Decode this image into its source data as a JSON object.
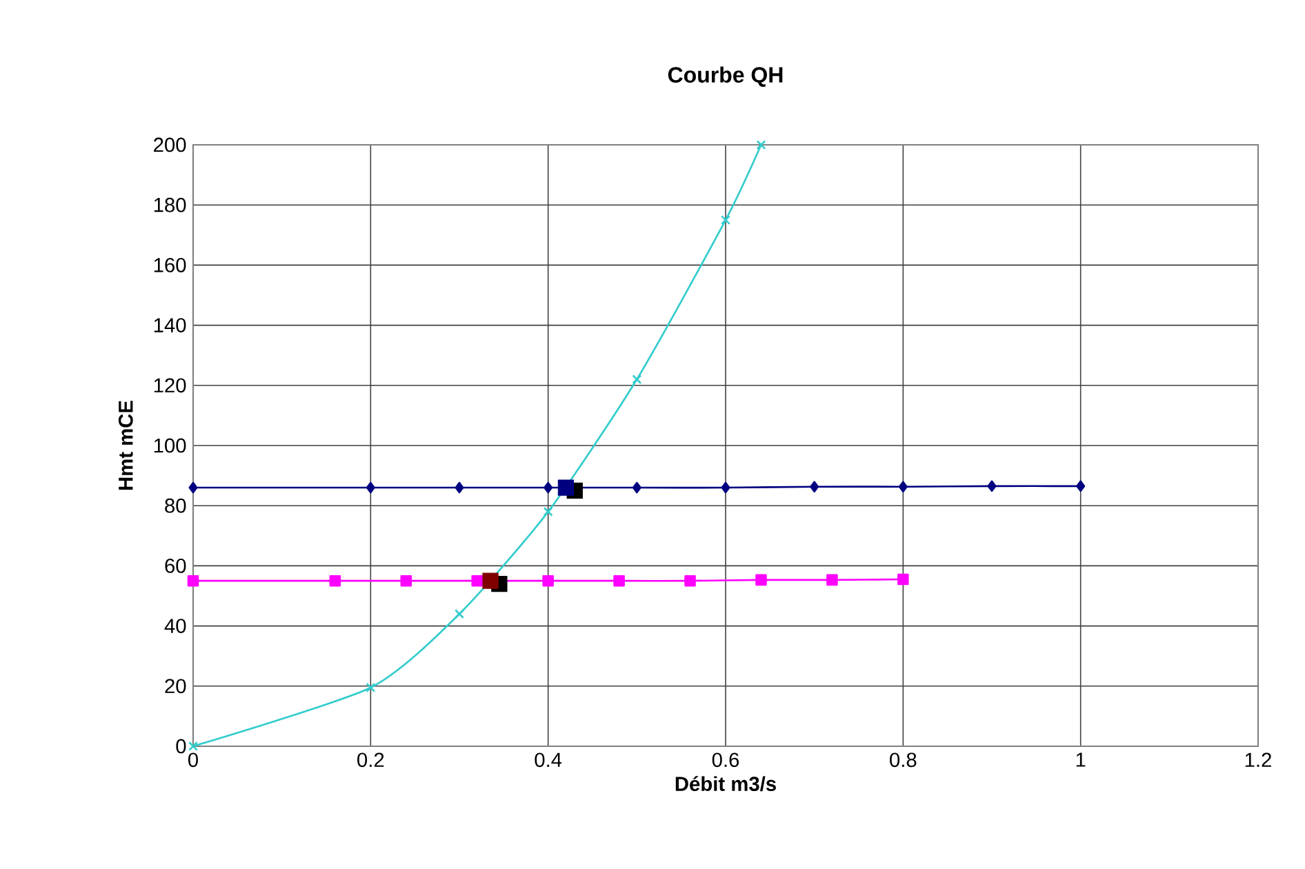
{
  "chart_data": {
    "type": "line",
    "title": "Courbe QH",
    "xlabel": "Débit m3/s",
    "ylabel": "Hmt mCE",
    "xlim": [
      0,
      1.2
    ],
    "xticks": [
      0,
      0.2,
      0.4,
      0.6,
      0.8,
      1,
      1.2
    ],
    "ylim": [
      0,
      200
    ],
    "yticks": [
      0,
      20,
      40,
      60,
      80,
      100,
      120,
      140,
      160,
      180,
      200
    ],
    "grid": true,
    "series": [
      {
        "color": "#000080",
        "marker": "diamond",
        "x": [
          0,
          0.2,
          0.3,
          0.4,
          0.5,
          0.6,
          0.7,
          0.8,
          0.9,
          1.0
        ],
        "values": [
          86,
          86,
          86,
          86,
          86,
          86,
          86.3,
          86.3,
          86.5,
          86.5
        ]
      },
      {
        "color": "#ff00ff",
        "marker": "square",
        "x": [
          0,
          0.16,
          0.24,
          0.32,
          0.4,
          0.48,
          0.56,
          0.64,
          0.72,
          0.8
        ],
        "values": [
          55,
          55,
          55,
          55,
          55,
          55,
          55,
          55.3,
          55.3,
          55.5
        ]
      },
      {
        "color": "#33cccc",
        "marker": "cross",
        "x": [
          0,
          0.2,
          0.3,
          0.4,
          0.5,
          0.6,
          0.64
        ],
        "values": [
          0,
          19.5,
          44,
          78,
          122,
          175,
          200
        ]
      },
      {
        "type": "scatter",
        "color": "#000000",
        "marker": "square",
        "x": [
          0.43,
          0.345
        ],
        "values": [
          85,
          54
        ]
      },
      {
        "type": "scatter",
        "color": "#000080",
        "marker": "square",
        "x": [
          0.42
        ],
        "values": [
          86
        ]
      },
      {
        "type": "scatter",
        "color": "#800000",
        "marker": "square",
        "x": [
          0.335
        ],
        "values": [
          55
        ]
      }
    ]
  }
}
